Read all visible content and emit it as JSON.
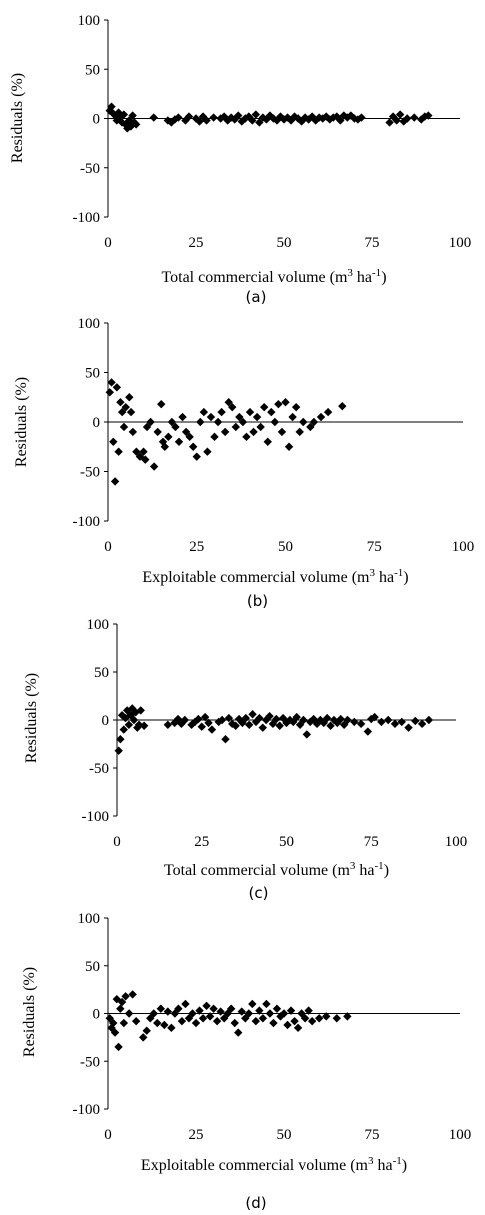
{
  "chart_data": [
    {
      "type": "scatter",
      "panel_label": "(a)",
      "xlabel_main": "Total commercial volume (m",
      "xlabel_sup1": "3",
      "xlabel_mid": " ha",
      "xlabel_sup2": "-1",
      "xlabel_end": ")",
      "ylabel": "Residuals (%)",
      "xlim": [
        0,
        100
      ],
      "ylim": [
        -100,
        100
      ],
      "xticks": [
        "0",
        "25",
        "50",
        "75",
        "100"
      ],
      "yticks": [
        "100",
        "50",
        "0",
        "-50",
        "-100"
      ],
      "marker_color": "#000000",
      "points": [
        [
          0.5,
          8
        ],
        [
          1,
          12
        ],
        [
          1.5,
          5
        ],
        [
          2,
          3
        ],
        [
          2.5,
          -2
        ],
        [
          3,
          6
        ],
        [
          3.5,
          2
        ],
        [
          4,
          -4
        ],
        [
          4.5,
          4
        ],
        [
          5,
          -6
        ],
        [
          5.5,
          -10
        ],
        [
          6,
          -2
        ],
        [
          6.5,
          -8
        ],
        [
          7,
          3
        ],
        [
          7.5,
          -4
        ],
        [
          8,
          -6
        ],
        [
          13,
          1
        ],
        [
          17,
          -2
        ],
        [
          18,
          -4
        ],
        [
          19,
          -1
        ],
        [
          20,
          1
        ],
        [
          22,
          -2
        ],
        [
          23,
          2
        ],
        [
          25,
          0
        ],
        [
          26,
          -3
        ],
        [
          27,
          2
        ],
        [
          28,
          -2
        ],
        [
          30,
          1
        ],
        [
          32,
          0
        ],
        [
          33,
          2
        ],
        [
          34,
          -2
        ],
        [
          35,
          1
        ],
        [
          36,
          -1
        ],
        [
          37,
          3
        ],
        [
          38,
          -3
        ],
        [
          39,
          0
        ],
        [
          40,
          2
        ],
        [
          41,
          -2
        ],
        [
          42,
          4
        ],
        [
          43,
          -4
        ],
        [
          44,
          1
        ],
        [
          45,
          -1
        ],
        [
          46,
          3
        ],
        [
          47,
          0
        ],
        [
          48,
          -2
        ],
        [
          49,
          2
        ],
        [
          50,
          -1
        ],
        [
          51,
          1
        ],
        [
          52,
          -2
        ],
        [
          53,
          2
        ],
        [
          54,
          0
        ],
        [
          55,
          -3
        ],
        [
          56,
          1
        ],
        [
          57,
          -1
        ],
        [
          58,
          2
        ],
        [
          59,
          -2
        ],
        [
          60,
          1
        ],
        [
          61,
          0
        ],
        [
          62,
          2
        ],
        [
          63,
          -1
        ],
        [
          64,
          1
        ],
        [
          65,
          2
        ],
        [
          66,
          -2
        ],
        [
          67,
          3
        ],
        [
          68,
          1
        ],
        [
          69,
          3
        ],
        [
          70,
          0
        ],
        [
          71,
          -1
        ],
        [
          72,
          1
        ],
        [
          80,
          -4
        ],
        [
          81,
          2
        ],
        [
          82,
          -2
        ],
        [
          83,
          4
        ],
        [
          84,
          -3
        ],
        [
          85,
          0
        ],
        [
          87,
          1
        ],
        [
          89,
          -1
        ],
        [
          90,
          2
        ],
        [
          91,
          3
        ]
      ]
    },
    {
      "type": "scatter",
      "panel_label": "(b)",
      "xlabel_main": "Exploitable commercial volume (m",
      "xlabel_sup1": "3",
      "xlabel_mid": " ha",
      "xlabel_sup2": "-1",
      "xlabel_end": ")",
      "ylabel": "Residuals (%)",
      "xlim": [
        0,
        100
      ],
      "ylim": [
        -100,
        100
      ],
      "xticks": [
        "0",
        "25",
        "50",
        "75",
        "100"
      ],
      "yticks": [
        "100",
        "50",
        "0",
        "-50",
        "-100"
      ],
      "marker_color": "#000000",
      "points": [
        [
          0.5,
          30
        ],
        [
          1,
          40
        ],
        [
          1.5,
          -20
        ],
        [
          2,
          -60
        ],
        [
          2.5,
          35
        ],
        [
          3,
          -30
        ],
        [
          3.5,
          20
        ],
        [
          4,
          10
        ],
        [
          4.5,
          -5
        ],
        [
          5,
          15
        ],
        [
          6,
          25
        ],
        [
          6.5,
          10
        ],
        [
          7,
          -10
        ],
        [
          8,
          -30
        ],
        [
          9,
          -35
        ],
        [
          10,
          -30
        ],
        [
          10.5,
          -38
        ],
        [
          11,
          -5
        ],
        [
          12,
          0
        ],
        [
          13,
          -45
        ],
        [
          14,
          -10
        ],
        [
          15,
          18
        ],
        [
          15.5,
          -20
        ],
        [
          16,
          -25
        ],
        [
          17,
          -15
        ],
        [
          18,
          0
        ],
        [
          19,
          -5
        ],
        [
          20,
          -20
        ],
        [
          21,
          5
        ],
        [
          22,
          -10
        ],
        [
          23,
          -15
        ],
        [
          24,
          -25
        ],
        [
          25,
          -35
        ],
        [
          26,
          0
        ],
        [
          27,
          10
        ],
        [
          28,
          -30
        ],
        [
          29,
          5
        ],
        [
          30,
          -15
        ],
        [
          31,
          0
        ],
        [
          32,
          10
        ],
        [
          33,
          -10
        ],
        [
          34,
          20
        ],
        [
          35,
          15
        ],
        [
          36,
          -5
        ],
        [
          37,
          5
        ],
        [
          38,
          0
        ],
        [
          39,
          -15
        ],
        [
          40,
          10
        ],
        [
          41,
          -10
        ],
        [
          42,
          5
        ],
        [
          43,
          -5
        ],
        [
          44,
          15
        ],
        [
          45,
          -20
        ],
        [
          46,
          10
        ],
        [
          47,
          0
        ],
        [
          48,
          18
        ],
        [
          49,
          -10
        ],
        [
          50,
          20
        ],
        [
          51,
          -25
        ],
        [
          52,
          5
        ],
        [
          53,
          15
        ],
        [
          54,
          -10
        ],
        [
          55,
          0
        ],
        [
          57,
          -5
        ],
        [
          58,
          0
        ],
        [
          60,
          5
        ],
        [
          62,
          10
        ],
        [
          66,
          16
        ]
      ]
    },
    {
      "type": "scatter",
      "panel_label": "(c)",
      "xlabel_main": "Total commercial volume (m",
      "xlabel_sup1": "3",
      "xlabel_mid": " ha",
      "xlabel_sup2": "-1",
      "xlabel_end": ")",
      "ylabel": "Residuals (%)",
      "xlim": [
        0,
        100
      ],
      "ylim": [
        -100,
        100
      ],
      "xticks": [
        "0",
        "25",
        "50",
        "75",
        "100"
      ],
      "yticks": [
        "100",
        "50",
        "0",
        "-50",
        "-100"
      ],
      "marker_color": "#000000",
      "points": [
        [
          0.5,
          -32
        ],
        [
          1,
          -20
        ],
        [
          1.5,
          5
        ],
        [
          2,
          -10
        ],
        [
          2.5,
          2
        ],
        [
          3,
          10
        ],
        [
          3.5,
          -5
        ],
        [
          4,
          5
        ],
        [
          4.5,
          12
        ],
        [
          5,
          0
        ],
        [
          5.5,
          8
        ],
        [
          6,
          -8
        ],
        [
          6.5,
          -5
        ],
        [
          7,
          10
        ],
        [
          8,
          -6
        ],
        [
          15,
          -5
        ],
        [
          17,
          -3
        ],
        [
          18,
          1
        ],
        [
          19,
          -4
        ],
        [
          20,
          0
        ],
        [
          22,
          -5
        ],
        [
          23,
          -2
        ],
        [
          24,
          1
        ],
        [
          25,
          -7
        ],
        [
          26,
          3
        ],
        [
          27,
          -3
        ],
        [
          28,
          -10
        ],
        [
          30,
          -2
        ],
        [
          31,
          0
        ],
        [
          32,
          -20
        ],
        [
          33,
          2
        ],
        [
          34,
          -4
        ],
        [
          35,
          -6
        ],
        [
          36,
          1
        ],
        [
          37,
          -3
        ],
        [
          38,
          2
        ],
        [
          39,
          -5
        ],
        [
          40,
          6
        ],
        [
          41,
          -2
        ],
        [
          42,
          2
        ],
        [
          43,
          -8
        ],
        [
          44,
          0
        ],
        [
          45,
          4
        ],
        [
          46,
          -4
        ],
        [
          47,
          1
        ],
        [
          48,
          -6
        ],
        [
          49,
          2
        ],
        [
          50,
          -3
        ],
        [
          51,
          0
        ],
        [
          52,
          -2
        ],
        [
          53,
          3
        ],
        [
          54,
          -5
        ],
        [
          55,
          0
        ],
        [
          56,
          -15
        ],
        [
          57,
          -2
        ],
        [
          58,
          1
        ],
        [
          59,
          -4
        ],
        [
          60,
          0
        ],
        [
          61,
          -3
        ],
        [
          62,
          2
        ],
        [
          63,
          -6
        ],
        [
          64,
          0
        ],
        [
          65,
          -3
        ],
        [
          66,
          1
        ],
        [
          67,
          -5
        ],
        [
          68,
          0
        ],
        [
          70,
          -2
        ],
        [
          72,
          -4
        ],
        [
          74,
          -12
        ],
        [
          75,
          1
        ],
        [
          76,
          3
        ],
        [
          78,
          -2
        ],
        [
          80,
          0
        ],
        [
          82,
          -4
        ],
        [
          84,
          -2
        ],
        [
          86,
          -8
        ],
        [
          88,
          -1
        ],
        [
          90,
          -4
        ],
        [
          92,
          0
        ]
      ]
    },
    {
      "type": "scatter",
      "panel_label": "(d)",
      "xlabel_main": "Exploitable commercial volume (m",
      "xlabel_sup1": "3",
      "xlabel_mid": " ha",
      "xlabel_sup2": "-1",
      "xlabel_end": ")",
      "ylabel": "Residuals (%)",
      "xlim": [
        0,
        100
      ],
      "ylim": [
        -100,
        100
      ],
      "xticks": [
        "0",
        "25",
        "50",
        "75",
        "100"
      ],
      "yticks": [
        "100",
        "50",
        "0",
        "-50",
        "-100"
      ],
      "marker_color": "#000000",
      "points": [
        [
          0.5,
          -5
        ],
        [
          1,
          -15
        ],
        [
          1.5,
          -10
        ],
        [
          2,
          -20
        ],
        [
          2.5,
          15
        ],
        [
          3,
          -35
        ],
        [
          3.5,
          5
        ],
        [
          4,
          12
        ],
        [
          4.5,
          -10
        ],
        [
          5,
          18
        ],
        [
          6,
          0
        ],
        [
          7,
          20
        ],
        [
          8,
          -8
        ],
        [
          10,
          -25
        ],
        [
          11,
          -18
        ],
        [
          12,
          -5
        ],
        [
          13,
          0
        ],
        [
          14,
          -10
        ],
        [
          15,
          5
        ],
        [
          16,
          -12
        ],
        [
          17,
          2
        ],
        [
          18,
          -15
        ],
        [
          19,
          0
        ],
        [
          20,
          5
        ],
        [
          21,
          -8
        ],
        [
          22,
          10
        ],
        [
          23,
          -5
        ],
        [
          24,
          0
        ],
        [
          25,
          -10
        ],
        [
          26,
          3
        ],
        [
          27,
          -5
        ],
        [
          28,
          8
        ],
        [
          29,
          -3
        ],
        [
          30,
          5
        ],
        [
          31,
          -8
        ],
        [
          32,
          2
        ],
        [
          33,
          -5
        ],
        [
          34,
          0
        ],
        [
          35,
          5
        ],
        [
          36,
          -10
        ],
        [
          37,
          -20
        ],
        [
          38,
          2
        ],
        [
          39,
          -5
        ],
        [
          40,
          0
        ],
        [
          41,
          10
        ],
        [
          42,
          -8
        ],
        [
          43,
          3
        ],
        [
          44,
          -5
        ],
        [
          45,
          10
        ],
        [
          46,
          0
        ],
        [
          47,
          -10
        ],
        [
          48,
          5
        ],
        [
          49,
          -3
        ],
        [
          50,
          0
        ],
        [
          51,
          -12
        ],
        [
          52,
          3
        ],
        [
          53,
          -8
        ],
        [
          54,
          -15
        ],
        [
          55,
          0
        ],
        [
          56,
          -5
        ],
        [
          57,
          3
        ],
        [
          58,
          -8
        ],
        [
          60,
          -5
        ],
        [
          62,
          -3
        ],
        [
          65,
          -5
        ],
        [
          68,
          -3
        ]
      ]
    }
  ]
}
